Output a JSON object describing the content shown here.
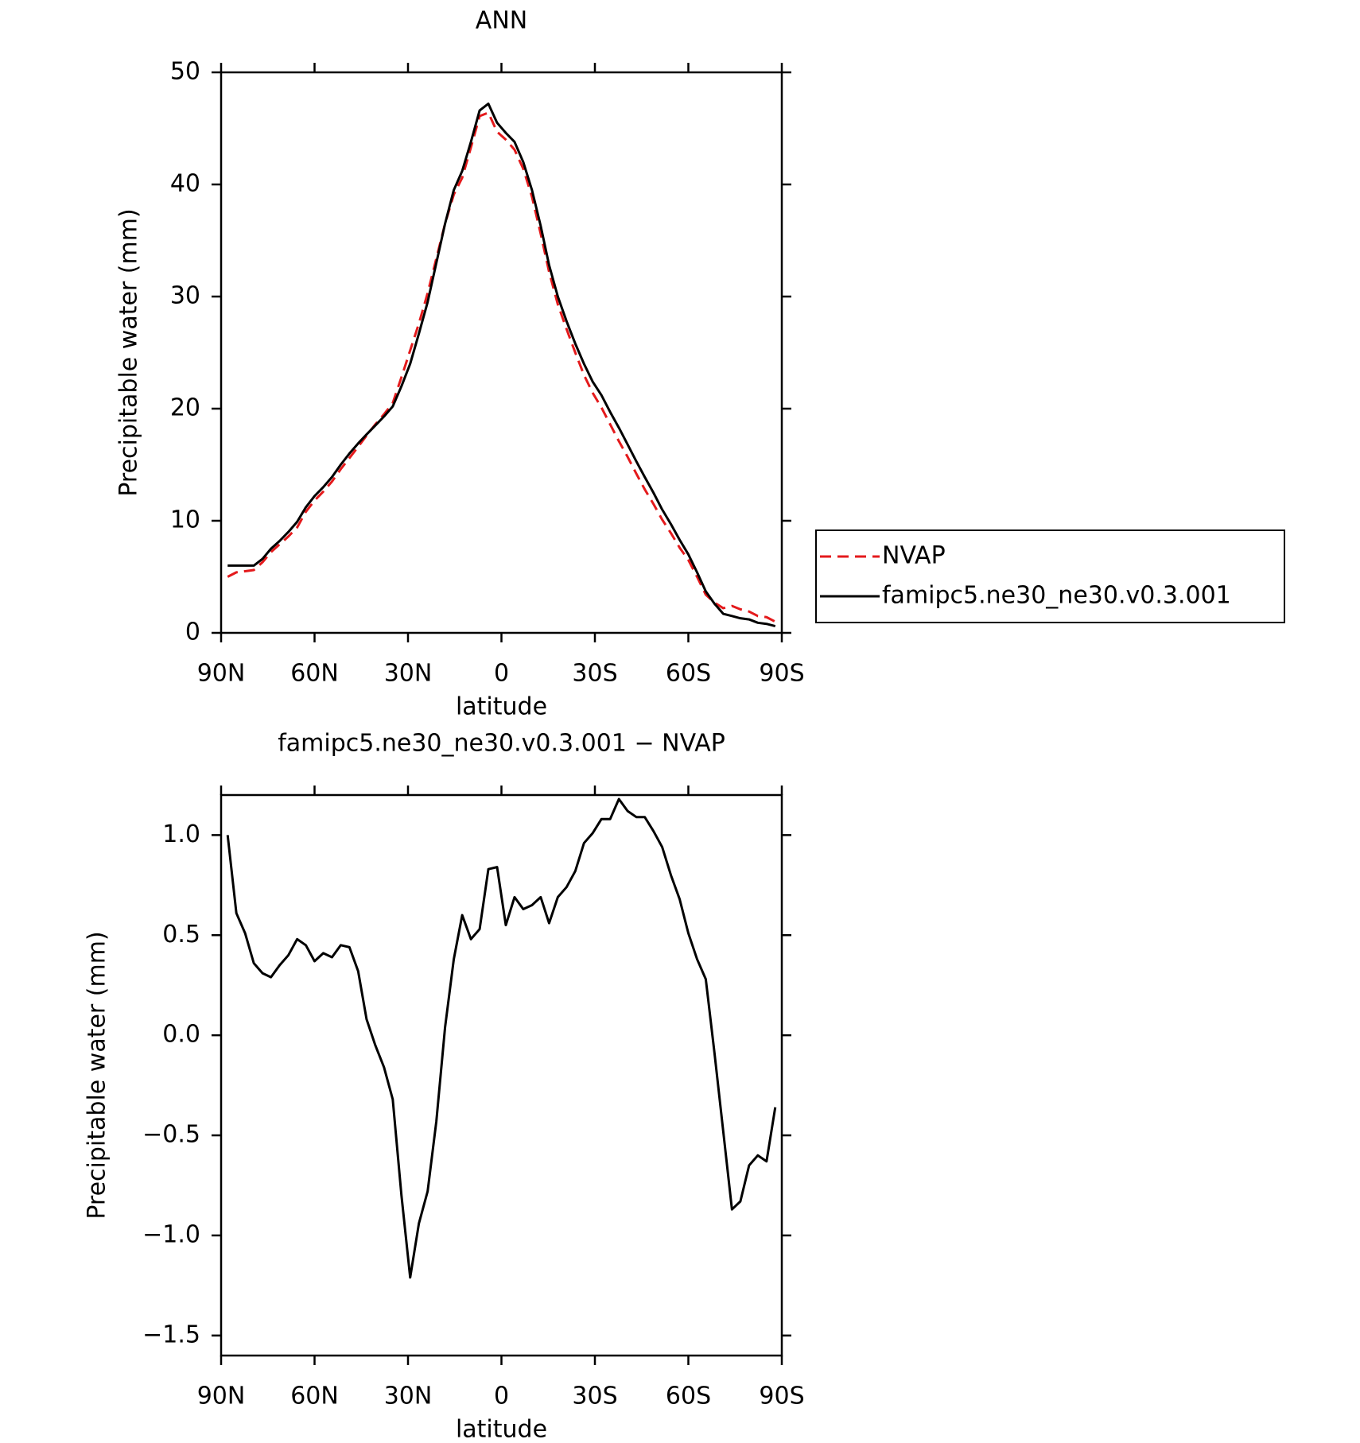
{
  "chart_data": [
    {
      "type": "line",
      "title": "ANN",
      "xlabel": "latitude",
      "ylabel": "Precipitable water (mm)",
      "x": [
        87.9,
        85.1,
        82.3,
        79.5,
        76.7,
        74.0,
        71.2,
        68.4,
        65.6,
        62.8,
        60.0,
        57.2,
        54.4,
        51.6,
        48.8,
        46.0,
        43.3,
        40.5,
        37.7,
        34.9,
        32.1,
        29.3,
        26.5,
        23.7,
        20.9,
        18.1,
        15.3,
        12.6,
        9.8,
        7.0,
        4.2,
        1.4,
        -1.4,
        -4.2,
        -7.0,
        -9.8,
        -12.6,
        -15.3,
        -18.1,
        -20.9,
        -23.7,
        -26.5,
        -29.3,
        -32.1,
        -34.9,
        -37.7,
        -40.5,
        -43.3,
        -46.0,
        -48.8,
        -51.6,
        -54.4,
        -57.2,
        -60.0,
        -62.8,
        -65.6,
        -68.4,
        -71.2,
        -74.0,
        -76.7,
        -79.5,
        -82.3,
        -85.1,
        -87.9
      ],
      "series": [
        {
          "name": "NVAP",
          "color": "#e41a1c",
          "dash": true,
          "values": [
            5.0,
            5.4,
            5.5,
            5.6,
            6.3,
            7.2,
            7.9,
            8.6,
            9.4,
            10.8,
            11.8,
            12.6,
            13.5,
            14.6,
            15.6,
            16.6,
            17.6,
            18.6,
            19.5,
            20.5,
            22.8,
            25.2,
            27.6,
            30.3,
            33.4,
            36.5,
            39.1,
            40.6,
            43.3,
            46.1,
            46.4,
            44.7,
            44.0,
            43.1,
            41.4,
            38.9,
            35.6,
            32.2,
            29.3,
            27.1,
            25.0,
            23.0,
            21.4,
            20.1,
            18.6,
            17.1,
            15.7,
            14.2,
            12.8,
            11.5,
            10.1,
            8.9,
            7.6,
            6.5,
            5.0,
            3.4,
            2.7,
            2.2,
            2.4,
            2.1,
            1.9,
            1.5,
            1.4,
            1.0
          ]
        },
        {
          "name": "famipc5.ne30_ne30.v0.3.001",
          "color": "#000000",
          "dash": false,
          "values": [
            6.0,
            6.0,
            6.0,
            6.0,
            6.6,
            7.5,
            8.2,
            9.0,
            9.9,
            11.2,
            12.2,
            13.0,
            13.9,
            15.0,
            16.0,
            16.9,
            17.7,
            18.5,
            19.3,
            20.2,
            22.0,
            24.0,
            26.7,
            29.5,
            33.0,
            36.5,
            39.5,
            41.2,
            43.8,
            46.6,
            47.2,
            45.5,
            44.6,
            43.8,
            42.0,
            39.5,
            36.3,
            32.8,
            30.0,
            27.8,
            25.8,
            24.0,
            22.4,
            21.2,
            19.7,
            18.3,
            16.8,
            15.3,
            13.9,
            12.5,
            11.0,
            9.7,
            8.3,
            7.0,
            5.4,
            3.7,
            2.6,
            1.7,
            1.5,
            1.3,
            1.2,
            0.9,
            0.8,
            0.6
          ]
        }
      ],
      "xlim": [
        90,
        -90
      ],
      "xticks": [
        {
          "value": 90,
          "label": "90N"
        },
        {
          "value": 60,
          "label": "60N"
        },
        {
          "value": 30,
          "label": "30N"
        },
        0,
        {
          "value": -30,
          "label": "30S"
        },
        {
          "value": -60,
          "label": "60S"
        },
        {
          "value": -90,
          "label": "90S"
        }
      ],
      "ylim": [
        0,
        50
      ],
      "yticks": [
        0,
        10,
        20,
        30,
        40,
        50
      ],
      "legend": "right"
    },
    {
      "type": "line",
      "title": "famipc5.ne30_ne30.v0.3.001 − NVAP",
      "xlabel": "latitude",
      "ylabel": "Precipitable water (mm)",
      "x": [
        87.9,
        85.1,
        82.3,
        79.5,
        76.7,
        74.0,
        71.2,
        68.4,
        65.6,
        62.8,
        60.0,
        57.2,
        54.4,
        51.6,
        48.8,
        46.0,
        43.3,
        40.5,
        37.7,
        34.9,
        32.1,
        29.3,
        26.5,
        23.7,
        20.9,
        18.1,
        15.3,
        12.6,
        9.8,
        7.0,
        4.2,
        1.4,
        -1.4,
        -4.2,
        -7.0,
        -9.8,
        -12.6,
        -15.3,
        -18.1,
        -20.9,
        -23.7,
        -26.5,
        -29.3,
        -32.1,
        -34.9,
        -37.7,
        -40.5,
        -43.3,
        -46.0,
        -48.8,
        -51.6,
        -54.4,
        -57.2,
        -60.0,
        -62.8,
        -65.6,
        -68.4,
        -71.2,
        -74.0,
        -76.7,
        -79.5,
        -82.3,
        -85.1,
        -87.9
      ],
      "series": [
        {
          "color": "#000000",
          "dash": false,
          "values": [
            1.0,
            0.61,
            0.51,
            0.36,
            0.31,
            0.29,
            0.35,
            0.4,
            0.48,
            0.45,
            0.37,
            0.41,
            0.39,
            0.45,
            0.44,
            0.32,
            0.08,
            -0.05,
            -0.16,
            -0.32,
            -0.8,
            -1.21,
            -0.94,
            -0.78,
            -0.43,
            0.04,
            0.38,
            0.6,
            0.48,
            0.53,
            0.83,
            0.84,
            0.55,
            0.69,
            0.63,
            0.65,
            0.69,
            0.56,
            0.69,
            0.74,
            0.82,
            0.96,
            1.01,
            1.08,
            1.08,
            1.18,
            1.12,
            1.09,
            1.09,
            1.02,
            0.94,
            0.8,
            0.68,
            0.51,
            0.38,
            0.28,
            -0.09,
            -0.48,
            -0.87,
            -0.83,
            -0.65,
            -0.6,
            -0.63,
            -0.36
          ]
        }
      ],
      "xlim": [
        90,
        -90
      ],
      "xticks": [
        {
          "value": 90,
          "label": "90N"
        },
        {
          "value": 60,
          "label": "60N"
        },
        {
          "value": 30,
          "label": "30N"
        },
        0,
        {
          "value": -30,
          "label": "30S"
        },
        {
          "value": -60,
          "label": "60S"
        },
        {
          "value": -90,
          "label": "90S"
        }
      ],
      "ylim": [
        -1.6,
        1.2
      ],
      "yticks": [
        {
          "value": -1.5,
          "label": "−1.5"
        },
        {
          "value": -1.0,
          "label": "−1.0"
        },
        {
          "value": -0.5,
          "label": "−0.5"
        },
        {
          "value": 0,
          "label": "0.0"
        },
        0.5,
        {
          "value": 1.0,
          "label": "1.0"
        }
      ]
    }
  ]
}
